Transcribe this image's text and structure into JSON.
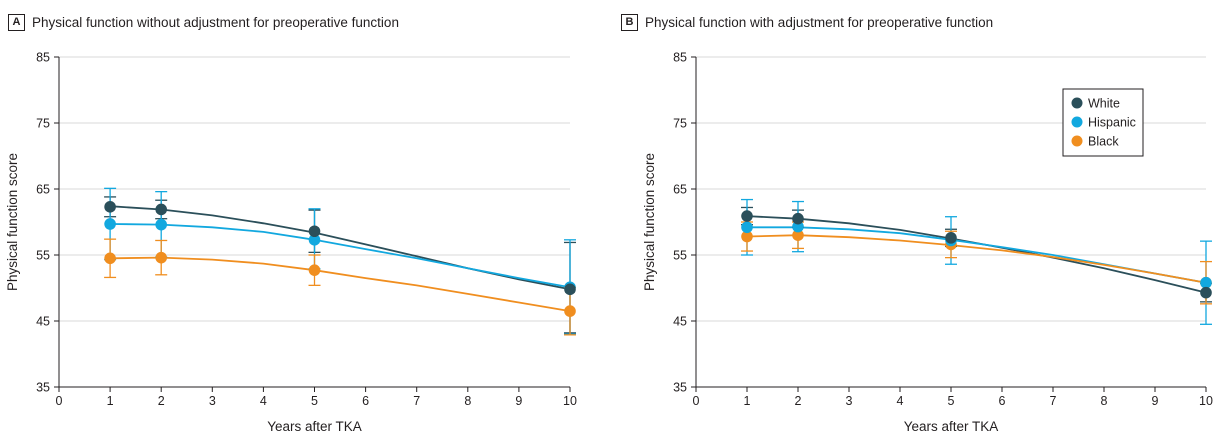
{
  "chart_data": [
    {
      "type": "line",
      "panel_letter": "A",
      "title": "Physical function without adjustment for preoperative function",
      "xlabel": "Years after TKA",
      "ylabel": "Physical function score",
      "xlim": [
        0,
        10
      ],
      "ylim": [
        35,
        85
      ],
      "xticks": [
        0,
        1,
        2,
        3,
        4,
        5,
        6,
        7,
        8,
        9,
        10
      ],
      "yticks": [
        35,
        45,
        55,
        65,
        75,
        85
      ],
      "grid": "horizontal",
      "legend": "none",
      "series": [
        {
          "name": "White",
          "color": "#2b4f5a",
          "x": [
            1,
            2,
            5,
            10
          ],
          "values": [
            62.3,
            61.9,
            58.6,
            49.8
          ],
          "err_low": [
            60.8,
            60.5,
            55.4,
            43.2
          ],
          "err_high": [
            63.8,
            63.3,
            61.8,
            56.9
          ],
          "curve": [
            [
              1,
              62.4
            ],
            [
              2,
              61.9
            ],
            [
              3,
              61.0
            ],
            [
              4,
              59.8
            ],
            [
              5,
              58.4
            ],
            [
              6,
              56.6
            ],
            [
              7,
              54.8
            ],
            [
              8,
              53.0
            ],
            [
              9,
              51.3
            ],
            [
              10,
              49.8
            ]
          ]
        },
        {
          "name": "Hispanic",
          "color": "#12a8df",
          "x": [
            1,
            2,
            5,
            10
          ],
          "values": [
            59.7,
            59.6,
            57.3,
            50.1
          ],
          "err_low": [
            54.3,
            54.7,
            52.9,
            43.0
          ],
          "err_high": [
            65.1,
            64.6,
            62.0,
            57.3
          ],
          "curve": [
            [
              1,
              59.7
            ],
            [
              2,
              59.6
            ],
            [
              3,
              59.2
            ],
            [
              4,
              58.5
            ],
            [
              5,
              57.3
            ],
            [
              6,
              55.9
            ],
            [
              7,
              54.5
            ],
            [
              8,
              53.0
            ],
            [
              9,
              51.5
            ],
            [
              10,
              50.1
            ]
          ]
        },
        {
          "name": "Black",
          "color": "#f08e1f",
          "x": [
            1,
            2,
            5,
            10
          ],
          "values": [
            54.5,
            54.6,
            52.7,
            46.5
          ],
          "err_low": [
            51.6,
            52.0,
            50.4,
            42.9
          ],
          "err_high": [
            57.4,
            57.2,
            55.0,
            50.1
          ],
          "curve": [
            [
              1,
              54.5
            ],
            [
              2,
              54.6
            ],
            [
              3,
              54.3
            ],
            [
              4,
              53.7
            ],
            [
              5,
              52.7
            ],
            [
              6,
              51.5
            ],
            [
              7,
              50.4
            ],
            [
              8,
              49.1
            ],
            [
              9,
              47.8
            ],
            [
              10,
              46.5
            ]
          ]
        }
      ]
    },
    {
      "type": "line",
      "panel_letter": "B",
      "title": "Physical function with adjustment for preoperative function",
      "xlabel": "Years after TKA",
      "ylabel": "Physical function score",
      "xlim": [
        0,
        10
      ],
      "ylim": [
        35,
        85
      ],
      "xticks": [
        0,
        1,
        2,
        3,
        4,
        5,
        6,
        7,
        8,
        9,
        10
      ],
      "yticks": [
        35,
        45,
        55,
        65,
        75,
        85
      ],
      "grid": "horizontal",
      "legend": "top-right",
      "series": [
        {
          "name": "White",
          "color": "#2b4f5a",
          "x": [
            1,
            2,
            5,
            10
          ],
          "values": [
            60.9,
            60.5,
            57.6,
            49.3
          ],
          "err_low": [
            59.6,
            59.2,
            56.3,
            47.9
          ],
          "err_high": [
            62.2,
            61.8,
            58.9,
            50.7
          ],
          "curve": [
            [
              1,
              60.9
            ],
            [
              2,
              60.5
            ],
            [
              3,
              59.8
            ],
            [
              4,
              58.8
            ],
            [
              5,
              57.5
            ],
            [
              6,
              56.1
            ],
            [
              7,
              54.6
            ],
            [
              8,
              53.0
            ],
            [
              9,
              51.2
            ],
            [
              10,
              49.3
            ]
          ]
        },
        {
          "name": "Hispanic",
          "color": "#12a8df",
          "x": [
            1,
            2,
            5,
            10
          ],
          "values": [
            59.2,
            59.3,
            57.2,
            50.8
          ],
          "err_low": [
            55.0,
            55.5,
            53.6,
            44.5
          ],
          "err_high": [
            63.4,
            63.1,
            60.8,
            57.1
          ],
          "curve": [
            [
              1,
              59.2
            ],
            [
              2,
              59.2
            ],
            [
              3,
              58.9
            ],
            [
              4,
              58.3
            ],
            [
              5,
              57.3
            ],
            [
              6,
              56.2
            ],
            [
              7,
              55.0
            ],
            [
              8,
              53.6
            ],
            [
              9,
              52.2
            ],
            [
              10,
              50.8
            ]
          ]
        },
        {
          "name": "Black",
          "color": "#f08e1f",
          "x": [
            1,
            2,
            5,
            10
          ],
          "values": [
            57.8,
            58.0,
            56.6,
            50.8
          ],
          "err_low": [
            55.6,
            56.0,
            54.6,
            47.6
          ],
          "err_high": [
            60.0,
            60.0,
            58.6,
            54.0
          ],
          "curve": [
            [
              1,
              57.8
            ],
            [
              2,
              58.0
            ],
            [
              3,
              57.7
            ],
            [
              4,
              57.2
            ],
            [
              5,
              56.5
            ],
            [
              6,
              55.7
            ],
            [
              7,
              54.7
            ],
            [
              8,
              53.5
            ],
            [
              9,
              52.2
            ],
            [
              10,
              50.8
            ]
          ]
        }
      ]
    }
  ]
}
